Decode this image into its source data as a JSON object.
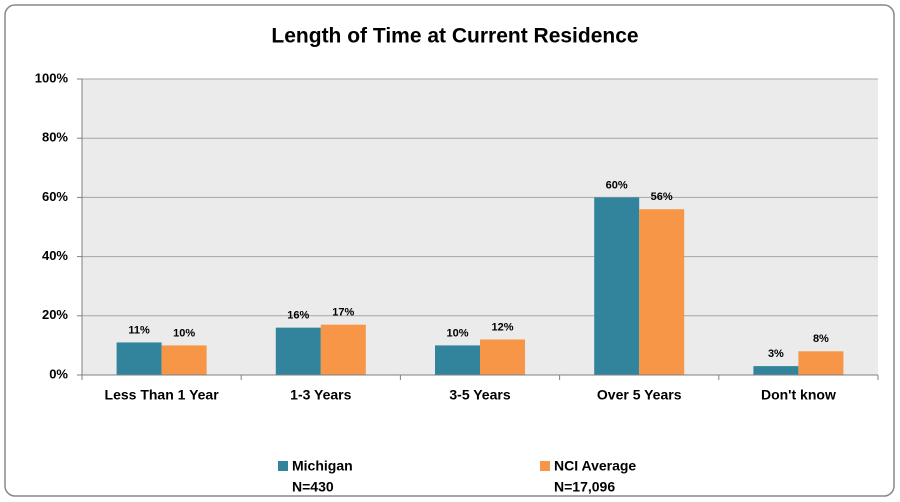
{
  "chart_data": {
    "type": "bar",
    "title": "Length of Time at Current Residence",
    "categories": [
      "Less Than 1 Year",
      "1-3 Years",
      "3-5 Years",
      "Over 5 Years",
      "Don't know"
    ],
    "series": [
      {
        "name": "Michigan",
        "sample": "N=430",
        "color": "#31849b",
        "values": [
          11,
          16,
          10,
          60,
          3
        ],
        "value_labels": [
          "11%",
          "16%",
          "10%",
          "60%",
          "3%"
        ]
      },
      {
        "name": "NCI Average",
        "sample": "N=17,096",
        "color": "#f79646",
        "values": [
          10,
          17,
          12,
          56,
          8
        ],
        "value_labels": [
          "10%",
          "17%",
          "12%",
          "56%",
          "8%"
        ]
      }
    ],
    "ylim": [
      0,
      100
    ],
    "yticks": [
      {
        "value": 0,
        "label": "0%"
      },
      {
        "value": 20,
        "label": "20%"
      },
      {
        "value": 40,
        "label": "40%"
      },
      {
        "value": 60,
        "label": "60%"
      },
      {
        "value": 80,
        "label": "80%"
      },
      {
        "value": 100,
        "label": "100%"
      }
    ],
    "grid": true,
    "legend": "bottom"
  }
}
